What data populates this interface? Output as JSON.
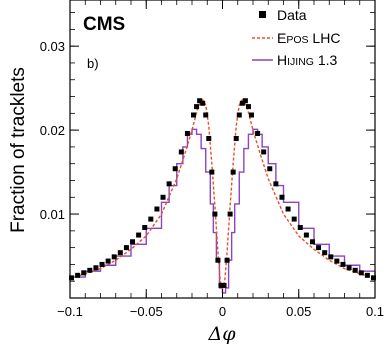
{
  "chart_data": {
    "type": "line",
    "experiment_label": "CMS",
    "panel_label": "b)",
    "xlabel": "Δφ",
    "ylabel": "Fraction of tracklets",
    "xlim": [
      -0.1,
      0.1
    ],
    "ylim": [
      0,
      0.0355
    ],
    "x_ticks": [
      -0.1,
      -0.05,
      0,
      0.05,
      0.1
    ],
    "x_tick_labels": [
      "−0.1",
      "−0.05",
      "0",
      "0.05",
      "0.1"
    ],
    "y_ticks": [
      0.01,
      0.02,
      0.03
    ],
    "y_tick_labels": [
      "0.01",
      "0.02",
      "0.03"
    ],
    "grid": false,
    "legend_position": "top-right",
    "legend": [
      {
        "label_cap1": "E",
        "label_sc1": "POS",
        "label_rest": " LHC",
        "style": "dashed",
        "color": "#e8502a"
      },
      {
        "label_cap1": "H",
        "label_sc1": "IJING",
        "label_rest": " 1.3",
        "style": "step",
        "color": "#8a45c0"
      }
    ],
    "data_legend_label": "Data",
    "series": [
      {
        "name": "Data",
        "marker": "square",
        "color": "#000000",
        "x": [
          -0.099,
          -0.095,
          -0.091,
          -0.087,
          -0.083,
          -0.079,
          -0.075,
          -0.071,
          -0.067,
          -0.063,
          -0.059,
          -0.055,
          -0.051,
          -0.047,
          -0.043,
          -0.039,
          -0.035,
          -0.031,
          -0.027,
          -0.023,
          -0.019,
          -0.017,
          -0.015,
          -0.013,
          -0.011,
          -0.009,
          -0.007,
          -0.005,
          -0.003,
          -0.001,
          0.001,
          0.003,
          0.005,
          0.007,
          0.009,
          0.011,
          0.013,
          0.015,
          0.017,
          0.019,
          0.023,
          0.027,
          0.031,
          0.035,
          0.039,
          0.043,
          0.047,
          0.051,
          0.055,
          0.059,
          0.063,
          0.067,
          0.071,
          0.075,
          0.079,
          0.083,
          0.087,
          0.091,
          0.095,
          0.099
        ],
        "y": [
          0.0024,
          0.0027,
          0.003,
          0.0033,
          0.0036,
          0.004,
          0.0044,
          0.0049,
          0.0054,
          0.006,
          0.0067,
          0.0075,
          0.0084,
          0.0094,
          0.0106,
          0.012,
          0.0136,
          0.0154,
          0.0174,
          0.0196,
          0.0218,
          0.0228,
          0.0235,
          0.0232,
          0.0218,
          0.019,
          0.015,
          0.01,
          0.0045,
          0.0015,
          0.0015,
          0.0045,
          0.01,
          0.015,
          0.019,
          0.0218,
          0.0232,
          0.0235,
          0.0228,
          0.0218,
          0.0196,
          0.0174,
          0.0154,
          0.0136,
          0.012,
          0.0106,
          0.0094,
          0.0084,
          0.0075,
          0.0067,
          0.006,
          0.0054,
          0.0049,
          0.0044,
          0.004,
          0.0036,
          0.0033,
          0.003,
          0.0027,
          0.0024
        ]
      },
      {
        "name": "EPOS LHC",
        "style": "dashed",
        "color": "#e8502a",
        "x": [
          -0.1,
          -0.09,
          -0.08,
          -0.07,
          -0.06,
          -0.05,
          -0.04,
          -0.03,
          -0.025,
          -0.02,
          -0.016,
          -0.013,
          -0.011,
          -0.009,
          -0.007,
          -0.005,
          -0.003,
          -0.0015,
          0,
          0.0015,
          0.003,
          0.005,
          0.007,
          0.009,
          0.011,
          0.013,
          0.016,
          0.02,
          0.025,
          0.03,
          0.04,
          0.05,
          0.06,
          0.07,
          0.08,
          0.09,
          0.1
        ],
        "y": [
          0.0023,
          0.0029,
          0.0035,
          0.0045,
          0.0058,
          0.0074,
          0.01,
          0.0142,
          0.017,
          0.02,
          0.0228,
          0.0236,
          0.023,
          0.0205,
          0.016,
          0.011,
          0.0055,
          0.002,
          0.0012,
          0.002,
          0.0055,
          0.011,
          0.016,
          0.0205,
          0.023,
          0.0236,
          0.0228,
          0.02,
          0.017,
          0.0142,
          0.01,
          0.0074,
          0.0058,
          0.0045,
          0.0035,
          0.0029,
          0.0023
        ]
      },
      {
        "name": "HIJING 1.3",
        "style": "step",
        "color": "#8a45c0",
        "x": [
          -0.1,
          -0.09,
          -0.08,
          -0.07,
          -0.06,
          -0.05,
          -0.04,
          -0.035,
          -0.03,
          -0.026,
          -0.023,
          -0.02,
          -0.017,
          -0.014,
          -0.011,
          -0.008,
          -0.006,
          -0.004,
          -0.002,
          0,
          0.002,
          0.004,
          0.006,
          0.008,
          0.011,
          0.014,
          0.017,
          0.02,
          0.023,
          0.026,
          0.03,
          0.035,
          0.04,
          0.05,
          0.06,
          0.07,
          0.08,
          0.09,
          0.1
        ],
        "y": [
          0.0025,
          0.0032,
          0.0039,
          0.005,
          0.0064,
          0.0083,
          0.0114,
          0.0134,
          0.016,
          0.018,
          0.0195,
          0.0201,
          0.0195,
          0.0178,
          0.015,
          0.0112,
          0.0078,
          0.0045,
          0.0012,
          0.0006,
          0.0012,
          0.0045,
          0.0078,
          0.0112,
          0.015,
          0.0178,
          0.0195,
          0.0201,
          0.0195,
          0.018,
          0.016,
          0.0134,
          0.0114,
          0.0083,
          0.0064,
          0.005,
          0.0039,
          0.0032,
          0.0025
        ]
      }
    ]
  }
}
